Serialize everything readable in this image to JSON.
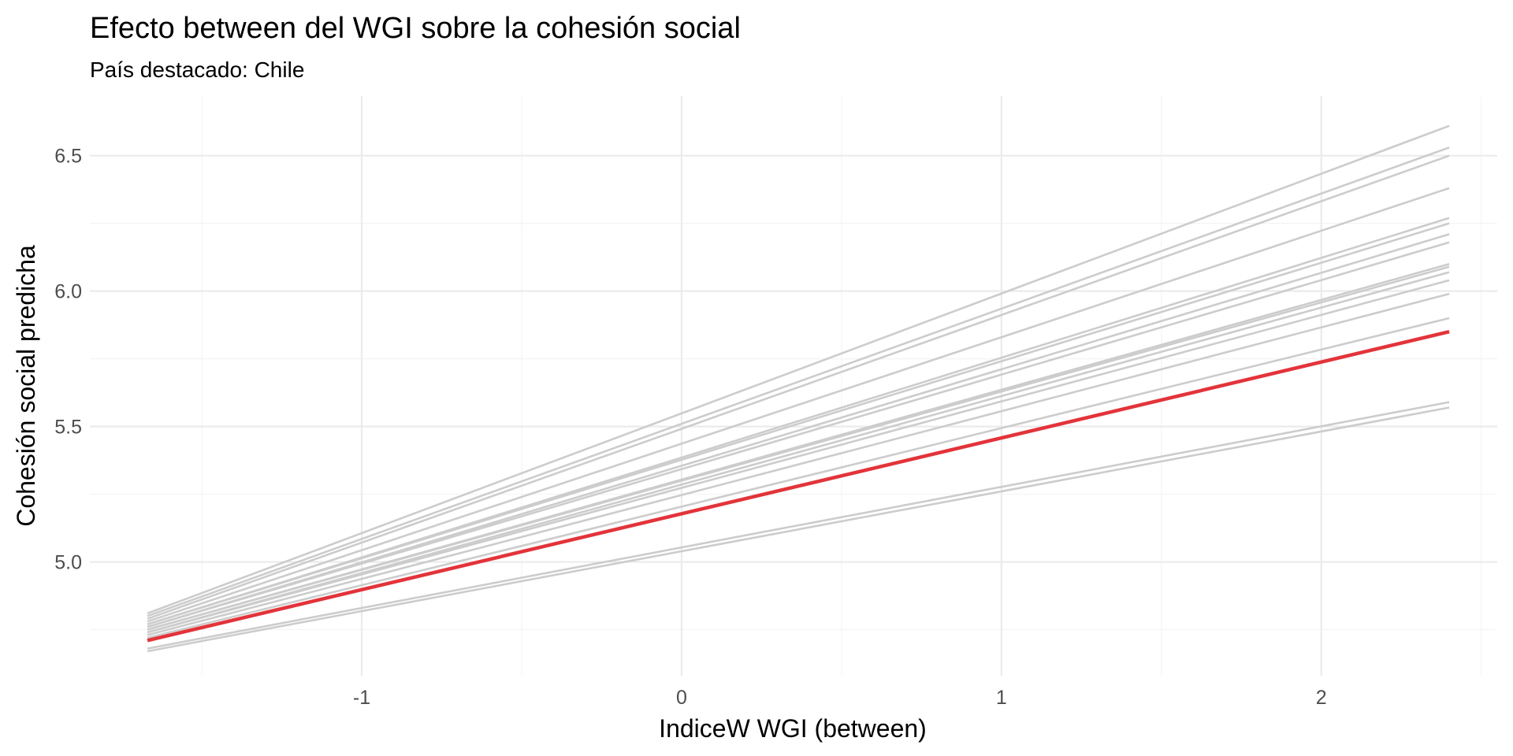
{
  "chart_data": {
    "type": "line",
    "title": "Efecto between del WGI sobre la cohesión social",
    "subtitle": "País destacado: Chile",
    "xlabel": "IndiceW WGI (between)",
    "ylabel": "Cohesión social predicha",
    "xlim": [
      -1.85,
      2.55
    ],
    "ylim": [
      4.58,
      6.72
    ],
    "x_ticks": [
      -1,
      0,
      1,
      2
    ],
    "x_tick_labels": [
      "-1",
      "0",
      "1",
      "2"
    ],
    "y_ticks": [
      5.0,
      5.5,
      6.0,
      6.5
    ],
    "y_tick_labels": [
      "5.0",
      "5.5",
      "6.0",
      "6.5"
    ],
    "grid": true,
    "legend": "none",
    "x": [
      -1.67,
      2.4
    ],
    "highlight_color": "#e3333a",
    "other_color": "#cccccc",
    "series": [
      {
        "values": [
          4.81,
          6.61
        ]
      },
      {
        "values": [
          4.8,
          6.53
        ]
      },
      {
        "values": [
          4.79,
          6.5
        ]
      },
      {
        "values": [
          4.78,
          6.38
        ]
      },
      {
        "values": [
          4.77,
          6.27
        ]
      },
      {
        "values": [
          4.77,
          6.25
        ]
      },
      {
        "values": [
          4.76,
          6.21
        ]
      },
      {
        "values": [
          4.76,
          6.18
        ]
      },
      {
        "values": [
          4.75,
          6.1
        ]
      },
      {
        "values": [
          4.75,
          6.09
        ]
      },
      {
        "values": [
          4.74,
          6.07
        ]
      },
      {
        "values": [
          4.74,
          6.04
        ]
      },
      {
        "values": [
          4.73,
          5.99
        ]
      },
      {
        "values": [
          4.72,
          5.9
        ]
      },
      {
        "values": [
          4.68,
          5.59
        ]
      },
      {
        "values": [
          4.67,
          5.57
        ]
      },
      {
        "name": "Chile",
        "highlight": true,
        "values": [
          4.71,
          5.85
        ]
      }
    ]
  }
}
